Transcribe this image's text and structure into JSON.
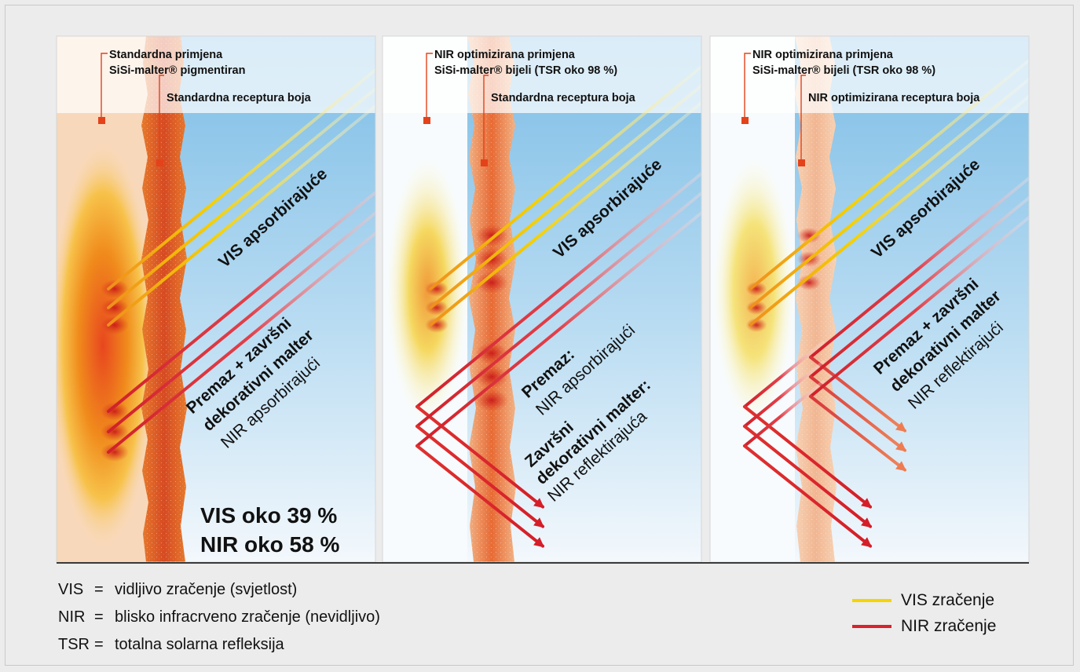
{
  "colors": {
    "vis_ray": "#f5d400",
    "nir_ray": "#d8232a",
    "leader": "#e4421b",
    "sky_top": "#7bbde6",
    "sky_bottom": "#f2f8fc",
    "render_orange": "#e9893a",
    "render_pale": "#f6c9a2"
  },
  "panels": [
    {
      "annotation_outer": [
        "Standardna primjena",
        "SiSi-malter® pigmentiran"
      ],
      "annotation_inner": "Standardna receptura boja",
      "label_vis": "VIS apsorbirajuće",
      "label_nir_bold": [
        "Premaz + završni",
        "dekorativni malter"
      ],
      "label_nir_normal": "NIR apsorbirajući",
      "result_vis": "VIS oko 39 %",
      "result_nir": "NIR oko 58 %"
    },
    {
      "annotation_outer": [
        "NIR optimizirana primjena",
        "SiSi-malter® bijeli (TSR oko 98 %)"
      ],
      "annotation_inner": "Standardna receptura boja",
      "label_vis": "VIS apsorbirajuće",
      "label_premaz_bold": "Premaz:",
      "label_premaz_normal": "NIR apsorbirajući",
      "label_zavrsni_bold": [
        "Završni",
        "dekorativni malter:"
      ],
      "label_zavrsni_normal": "NIR reflektirajuća"
    },
    {
      "annotation_outer": [
        "NIR optimizirana primjena",
        "SiSi-malter® bijeli (TSR oko 98 %)"
      ],
      "annotation_inner": "NIR optimizirana receptura boja",
      "label_vis": "VIS apsorbirajuće",
      "label_nir_bold": [
        "Premaz + završni",
        "dekorativni malter"
      ],
      "label_nir_normal": "NIR reflektirajući"
    }
  ],
  "legend": {
    "definitions": [
      {
        "abbr": "VIS",
        "eq": "=",
        "text": "vidljivo zračenje (svjetlost)"
      },
      {
        "abbr": "NIR",
        "eq": "=",
        "text": "blisko infracrveno zračenje (nevidljivo)"
      },
      {
        "abbr": "TSR",
        "eq": "=",
        "text": "totalna solarna refleksija"
      }
    ],
    "vis_label": "VIS zračenje",
    "nir_label": "NIR zračenje"
  }
}
